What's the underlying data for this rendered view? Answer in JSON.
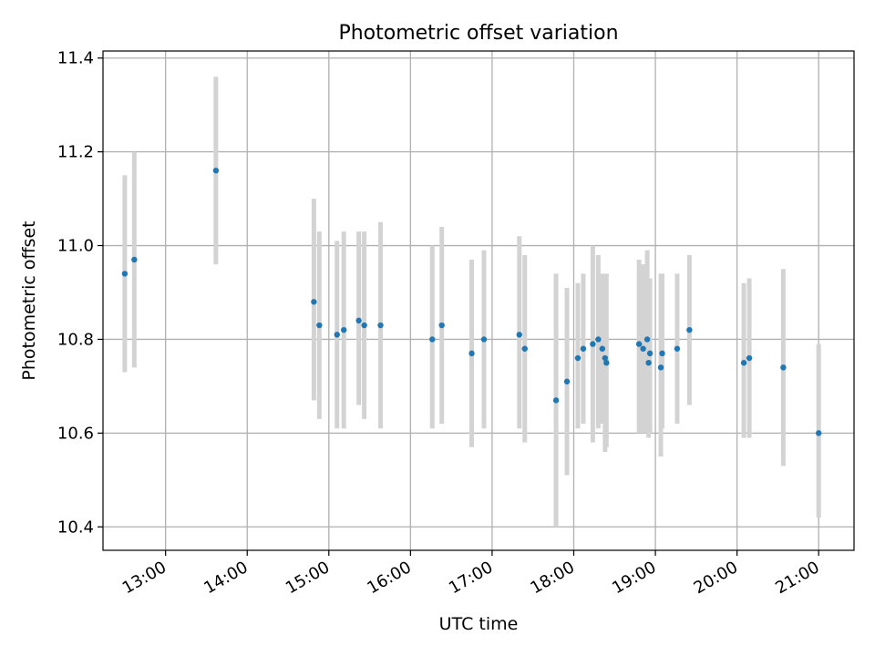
{
  "chart_data": {
    "type": "scatter",
    "title": "Photometric offset variation",
    "xlabel": "UTC time",
    "ylabel": "Photometric offset",
    "x_unit": "UTC time (HH:MM)",
    "xlim": [
      "12:14",
      "21:26"
    ],
    "ylim": [
      10.35,
      11.415
    ],
    "x_ticks": [
      "13:00",
      "14:00",
      "15:00",
      "16:00",
      "17:00",
      "18:00",
      "19:00",
      "20:00",
      "21:00"
    ],
    "y_ticks": [
      "10.4",
      "10.6",
      "10.8",
      "11.0",
      "11.2",
      "11.4"
    ],
    "grid": true,
    "colors": {
      "point": "#1f77b4",
      "errorbar": "#d3d3d3",
      "grid": "#b0b0b0"
    },
    "points": [
      {
        "x": "12:30",
        "y": 10.94,
        "ymin": 10.73,
        "ymax": 11.15
      },
      {
        "x": "12:37",
        "y": 10.97,
        "ymin": 10.74,
        "ymax": 11.2
      },
      {
        "x": "13:37",
        "y": 11.16,
        "ymin": 10.96,
        "ymax": 11.36
      },
      {
        "x": "14:49",
        "y": 10.88,
        "ymin": 10.67,
        "ymax": 11.1
      },
      {
        "x": "14:53",
        "y": 10.83,
        "ymin": 10.63,
        "ymax": 11.03
      },
      {
        "x": "15:06",
        "y": 10.81,
        "ymin": 10.61,
        "ymax": 11.01
      },
      {
        "x": "15:11",
        "y": 10.82,
        "ymin": 10.61,
        "ymax": 11.03
      },
      {
        "x": "15:22",
        "y": 10.84,
        "ymin": 10.66,
        "ymax": 11.03
      },
      {
        "x": "15:26",
        "y": 10.83,
        "ymin": 10.63,
        "ymax": 11.03
      },
      {
        "x": "15:38",
        "y": 10.83,
        "ymin": 10.61,
        "ymax": 11.05
      },
      {
        "x": "16:16",
        "y": 10.8,
        "ymin": 10.61,
        "ymax": 11.0
      },
      {
        "x": "16:23",
        "y": 10.83,
        "ymin": 10.62,
        "ymax": 11.04
      },
      {
        "x": "16:45",
        "y": 10.77,
        "ymin": 10.57,
        "ymax": 10.97
      },
      {
        "x": "16:54",
        "y": 10.8,
        "ymin": 10.61,
        "ymax": 10.99
      },
      {
        "x": "17:20",
        "y": 10.81,
        "ymin": 10.61,
        "ymax": 11.02
      },
      {
        "x": "17:24",
        "y": 10.78,
        "ymin": 10.58,
        "ymax": 10.98
      },
      {
        "x": "17:47",
        "y": 10.67,
        "ymin": 10.4,
        "ymax": 10.94
      },
      {
        "x": "17:55",
        "y": 10.71,
        "ymin": 10.51,
        "ymax": 10.91
      },
      {
        "x": "18:03",
        "y": 10.76,
        "ymin": 10.61,
        "ymax": 10.92
      },
      {
        "x": "18:07",
        "y": 10.78,
        "ymin": 10.62,
        "ymax": 10.94
      },
      {
        "x": "18:14",
        "y": 10.79,
        "ymin": 10.58,
        "ymax": 11.0
      },
      {
        "x": "18:18",
        "y": 10.8,
        "ymin": 10.61,
        "ymax": 10.98
      },
      {
        "x": "18:21",
        "y": 10.78,
        "ymin": 10.62,
        "ymax": 10.94
      },
      {
        "x": "18:23",
        "y": 10.76,
        "ymin": 10.56,
        "ymax": 10.93
      },
      {
        "x": "18:24",
        "y": 10.75,
        "ymin": 10.57,
        "ymax": 10.94
      },
      {
        "x": "18:48",
        "y": 10.79,
        "ymin": 10.6,
        "ymax": 10.97
      },
      {
        "x": "18:51",
        "y": 10.78,
        "ymin": 10.6,
        "ymax": 10.96
      },
      {
        "x": "18:54",
        "y": 10.8,
        "ymin": 10.6,
        "ymax": 10.99
      },
      {
        "x": "18:55",
        "y": 10.75,
        "ymin": 10.59,
        "ymax": 10.93
      },
      {
        "x": "18:56",
        "y": 10.77,
        "ymin": 10.6,
        "ymax": 10.93
      },
      {
        "x": "19:04",
        "y": 10.74,
        "ymin": 10.55,
        "ymax": 10.94
      },
      {
        "x": "19:05",
        "y": 10.77,
        "ymin": 10.61,
        "ymax": 10.94
      },
      {
        "x": "19:16",
        "y": 10.78,
        "ymin": 10.62,
        "ymax": 10.94
      },
      {
        "x": "19:25",
        "y": 10.82,
        "ymin": 10.66,
        "ymax": 10.98
      },
      {
        "x": "20:05",
        "y": 10.75,
        "ymin": 10.59,
        "ymax": 10.92
      },
      {
        "x": "20:09",
        "y": 10.76,
        "ymin": 10.59,
        "ymax": 10.93
      },
      {
        "x": "20:34",
        "y": 10.74,
        "ymin": 10.53,
        "ymax": 10.95
      },
      {
        "x": "21:00",
        "y": 10.6,
        "ymin": 10.42,
        "ymax": 10.79
      }
    ]
  }
}
